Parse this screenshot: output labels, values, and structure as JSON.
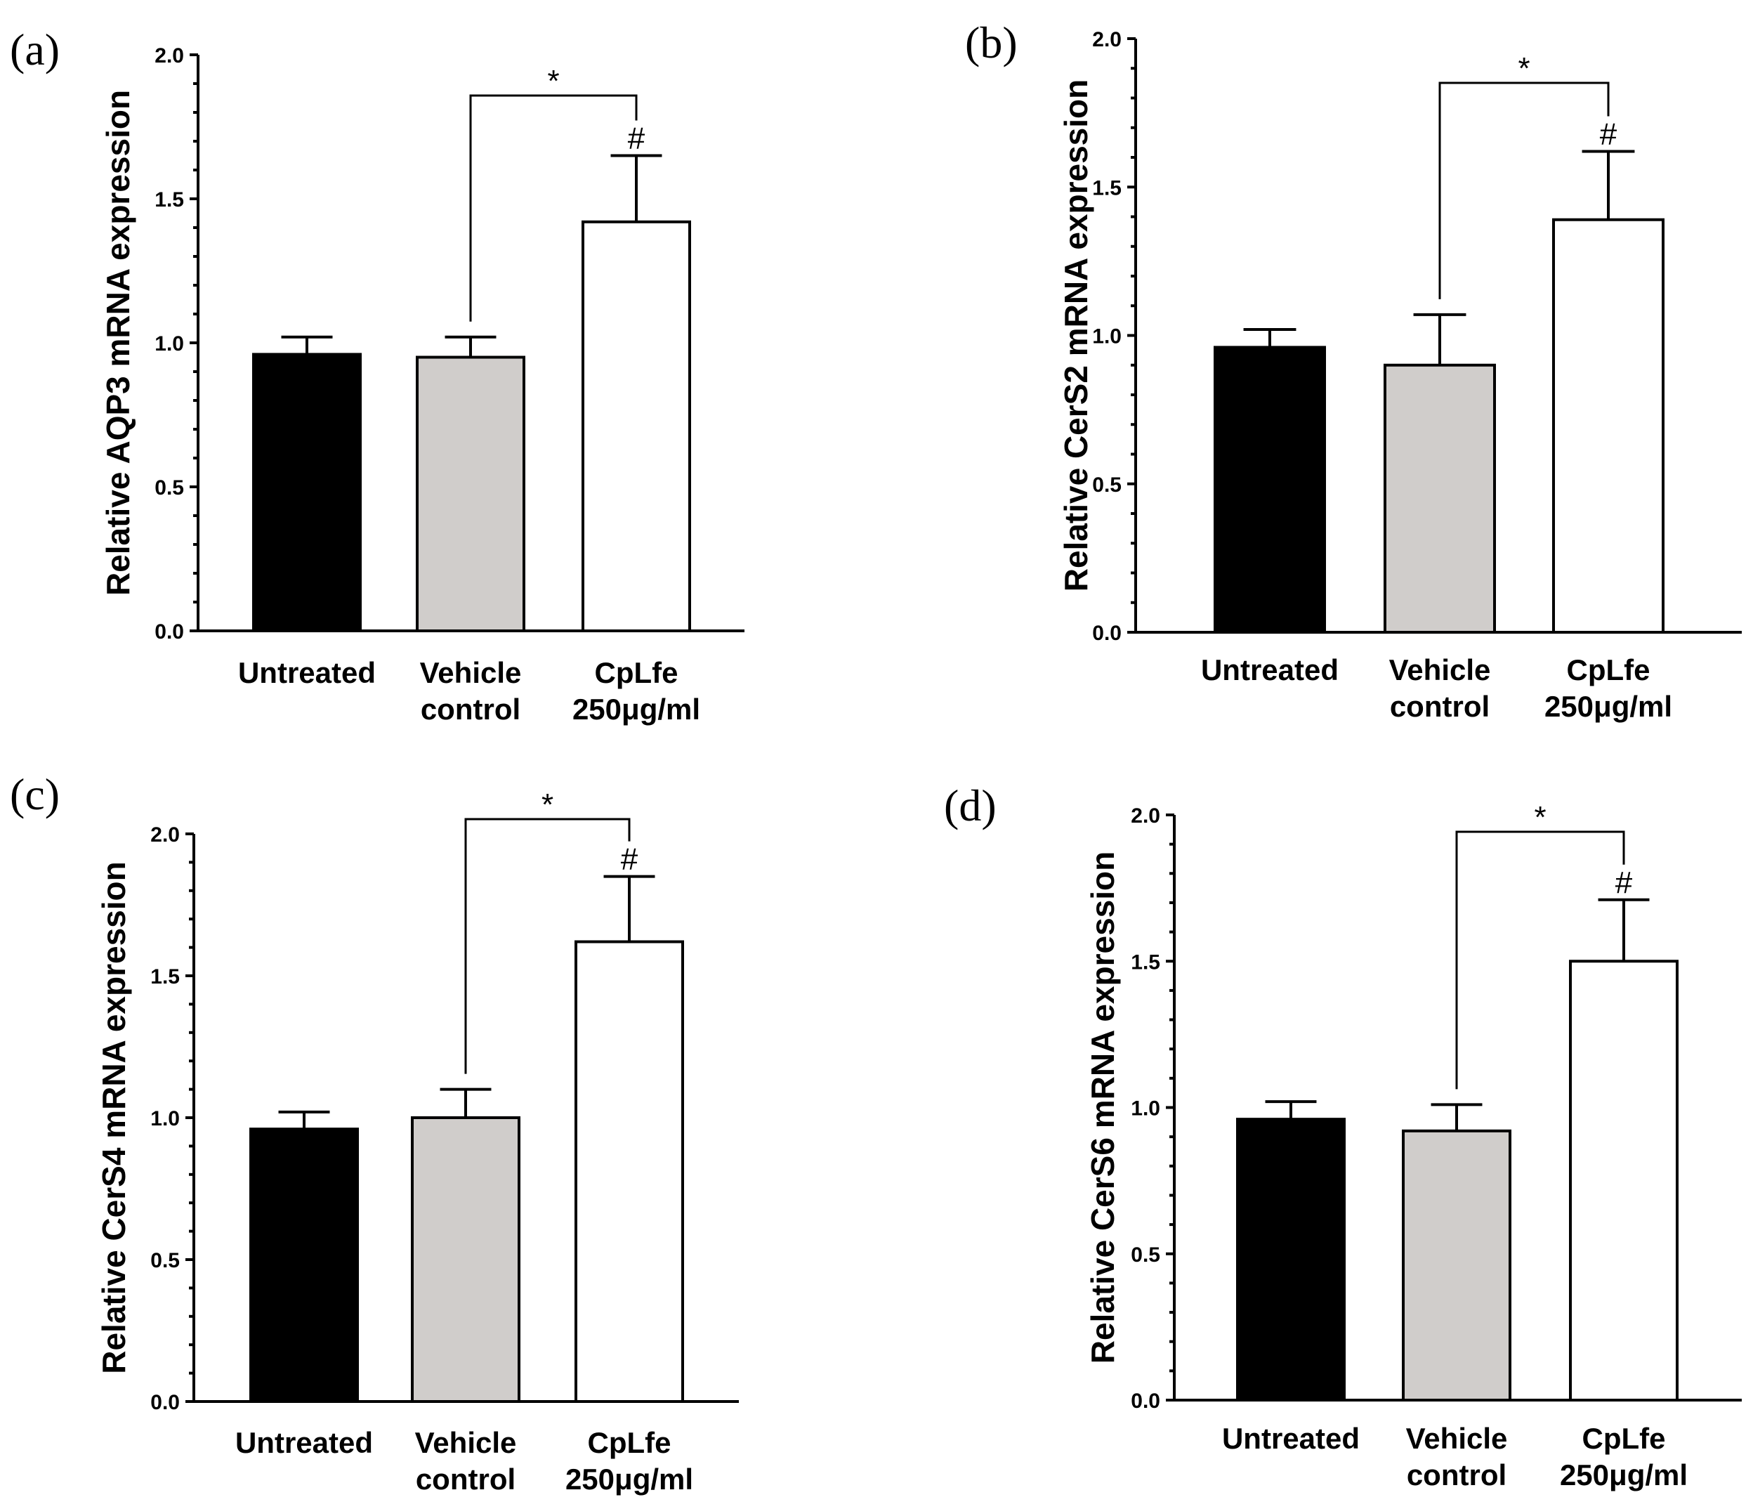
{
  "chart_data": [
    {
      "type": "bar",
      "panel_label": "(a)",
      "ylabel": "Relative AQP3 mRNA expression",
      "ylim": [
        0,
        2.0
      ],
      "yticks": [
        "0.0",
        "0.5",
        "1.0",
        "1.5",
        "2.0"
      ],
      "categories": [
        [
          "Untreated"
        ],
        [
          "Vehicle",
          "control"
        ],
        [
          "CpLfe",
          "250μg/ml"
        ]
      ],
      "values": [
        0.96,
        0.95,
        1.42
      ],
      "errors": [
        0.06,
        0.07,
        0.23
      ],
      "bar_colors": [
        "#000000",
        "#d0cdcb",
        "#ffffff"
      ],
      "significance": {
        "bracket": "*",
        "bar": "#"
      }
    },
    {
      "type": "bar",
      "panel_label": "(b)",
      "ylabel": "Relative CerS2 mRNA expression",
      "ylim": [
        0,
        2.0
      ],
      "yticks": [
        "0.0",
        "0.5",
        "1.0",
        "1.5",
        "2.0"
      ],
      "categories": [
        [
          "Untreated"
        ],
        [
          "Vehicle",
          "control"
        ],
        [
          "CpLfe",
          "250μg/ml"
        ]
      ],
      "values": [
        0.96,
        0.9,
        1.39
      ],
      "errors": [
        0.06,
        0.17,
        0.23
      ],
      "bar_colors": [
        "#000000",
        "#d0cdcb",
        "#ffffff"
      ],
      "significance": {
        "bracket": "*",
        "bar": "#"
      }
    },
    {
      "type": "bar",
      "panel_label": "(c)",
      "ylabel": "Relative CerS4 mRNA expression",
      "ylim": [
        0,
        2.0
      ],
      "yticks": [
        "0.0",
        "0.5",
        "1.0",
        "1.5",
        "2.0"
      ],
      "categories": [
        [
          "Untreated"
        ],
        [
          "Vehicle",
          "control"
        ],
        [
          "CpLfe",
          "250μg/ml"
        ]
      ],
      "values": [
        0.96,
        1.0,
        1.62
      ],
      "errors": [
        0.06,
        0.1,
        0.23
      ],
      "bar_colors": [
        "#000000",
        "#d0cdcb",
        "#ffffff"
      ],
      "significance": {
        "bracket": "*",
        "bar": "#"
      }
    },
    {
      "type": "bar",
      "panel_label": "(d)",
      "ylabel": "Relative CerS6 mRNA expression",
      "ylim": [
        0,
        2.0
      ],
      "yticks": [
        "0.0",
        "0.5",
        "1.0",
        "1.5",
        "2.0"
      ],
      "categories": [
        [
          "Untreated"
        ],
        [
          "Vehicle",
          "control"
        ],
        [
          "CpLfe",
          "250μg/ml"
        ]
      ],
      "values": [
        0.96,
        0.92,
        1.5
      ],
      "errors": [
        0.06,
        0.09,
        0.21
      ],
      "bar_colors": [
        "#000000",
        "#d0cdcb",
        "#ffffff"
      ],
      "significance": {
        "bracket": "*",
        "bar": "#"
      }
    }
  ]
}
